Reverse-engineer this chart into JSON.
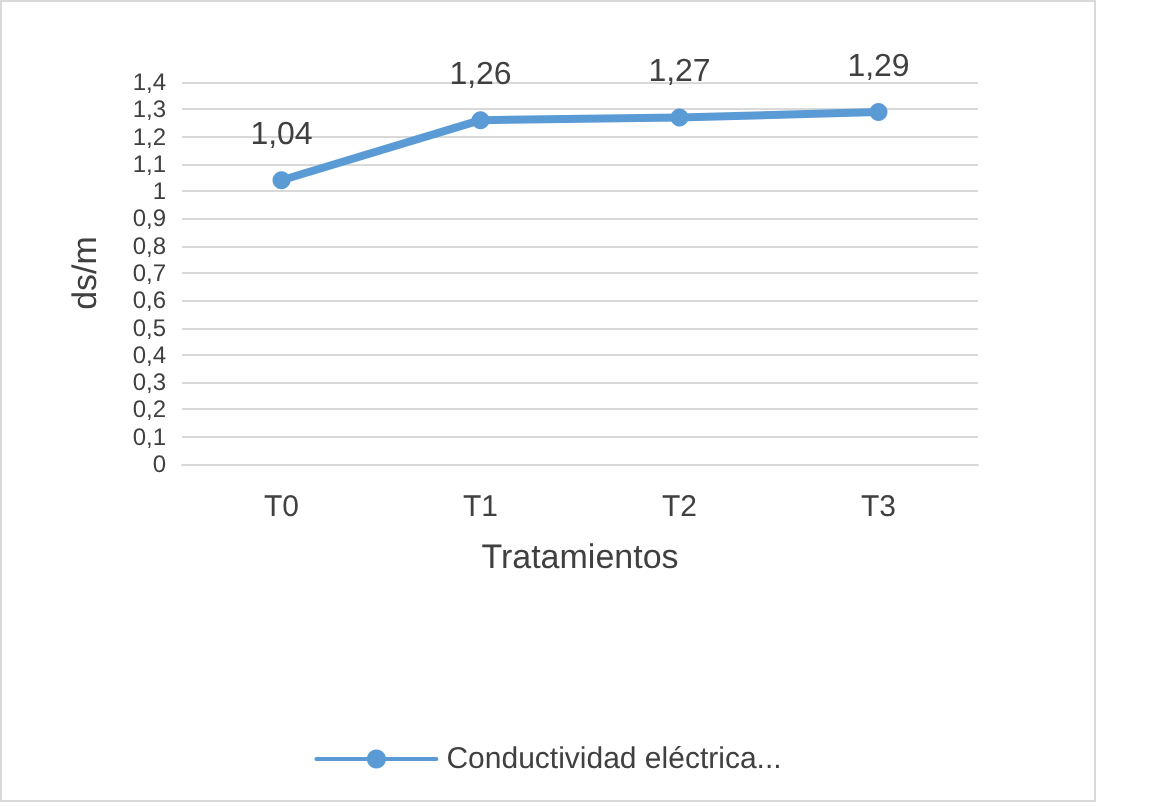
{
  "chart_data": {
    "type": "line",
    "xlabel": "Tratamientos",
    "ylabel": "ds/m",
    "categories": [
      "T0",
      "T1",
      "T2",
      "T3"
    ],
    "series": [
      {
        "name": "Conductividad eléctrica...",
        "color": "#5b9bd5",
        "values": [
          1.04,
          1.26,
          1.27,
          1.29
        ],
        "value_labels": [
          "1,04",
          "1,26",
          "1,27",
          "1,29"
        ]
      }
    ],
    "ylim": [
      0,
      1.4
    ],
    "yticks": [
      0,
      {
        "value": 0.1,
        "label": "0,1"
      },
      {
        "value": 0.2,
        "label": "0,2"
      },
      {
        "value": 0.3,
        "label": "0,3"
      },
      {
        "value": 0.4,
        "label": "0,4"
      },
      {
        "value": 0.5,
        "label": "0,5"
      },
      {
        "value": 0.6,
        "label": "0,6"
      },
      {
        "value": 0.7,
        "label": "0,7"
      },
      {
        "value": 0.8,
        "label": "0,8"
      },
      {
        "value": 0.9,
        "label": "0,9"
      },
      1,
      {
        "value": 1.1,
        "label": "1,1"
      },
      {
        "value": 1.2,
        "label": "1,2"
      },
      {
        "value": 1.3,
        "label": "1,3"
      },
      {
        "value": 1.4,
        "label": "1,4"
      }
    ],
    "grid": "y",
    "legend": "bottom",
    "marker": "circle",
    "line_style": "solid"
  }
}
